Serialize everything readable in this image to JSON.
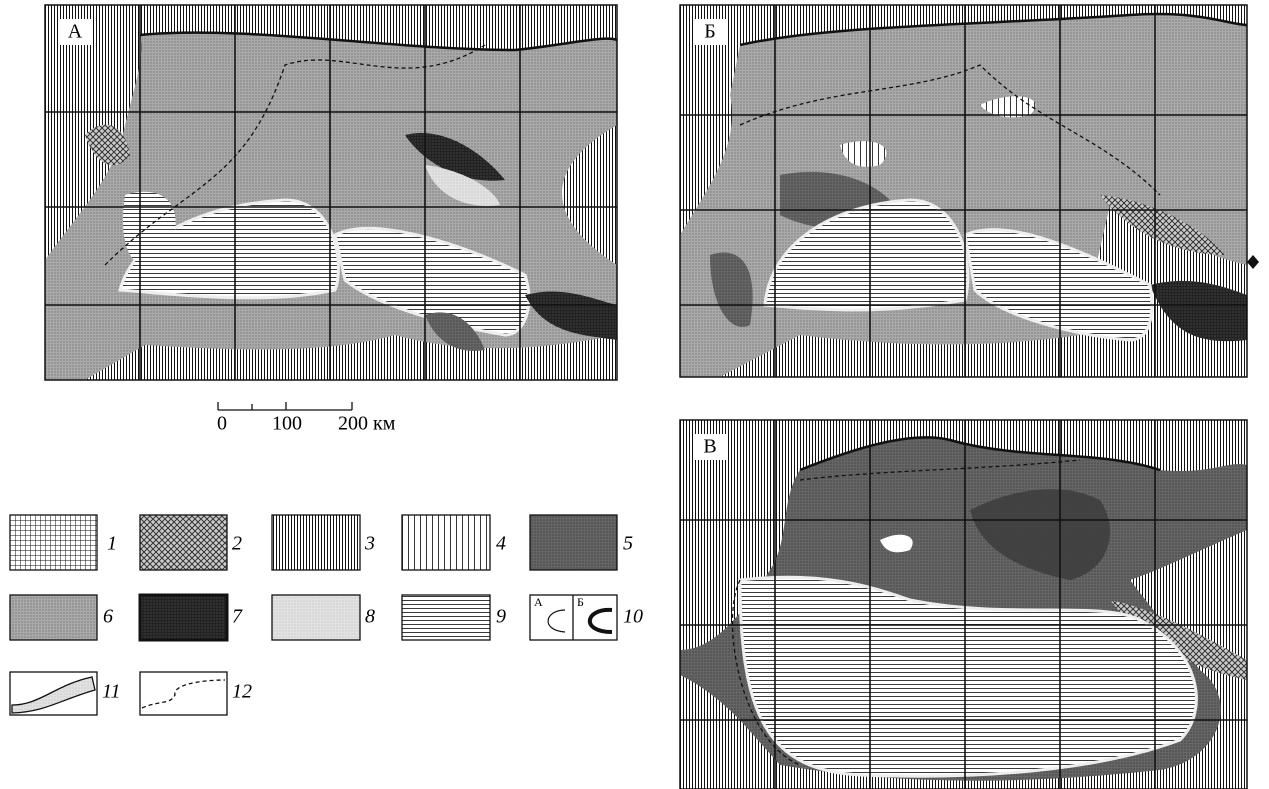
{
  "panels": [
    {
      "label": "А"
    },
    {
      "label": "Б"
    },
    {
      "label": "В"
    }
  ],
  "scale": {
    "ticks": [
      "0",
      "100",
      "200 км"
    ]
  },
  "legend": {
    "items": [
      "1",
      "2",
      "3",
      "4",
      "5",
      "6",
      "7",
      "8",
      "9",
      "10",
      "11",
      "12"
    ],
    "sub_labels": [
      "А",
      "Б"
    ]
  }
}
